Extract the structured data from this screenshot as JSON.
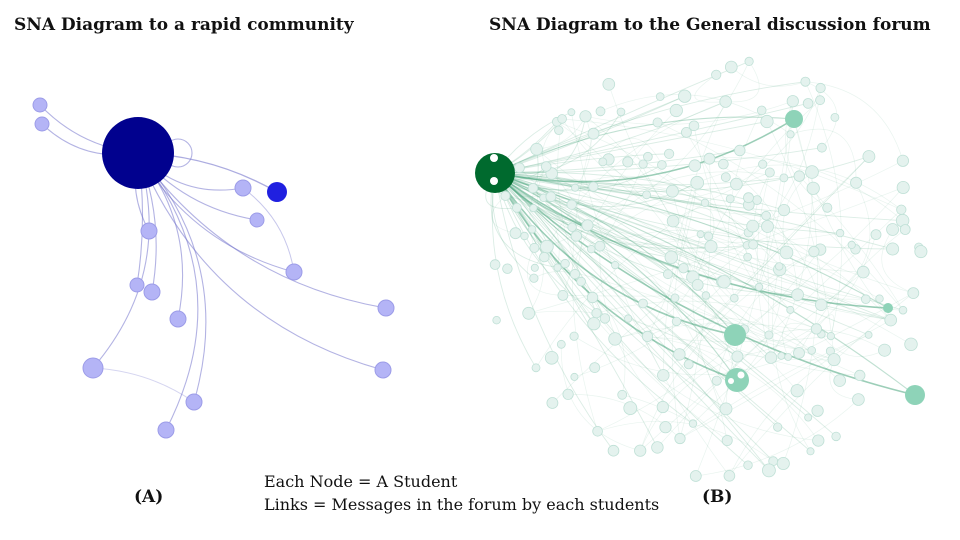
{
  "panel_a": {
    "title": "SNA Diagram to a rapid community",
    "label": "(A)",
    "colors": {
      "hub": "#01018e",
      "accent": "#2020e0",
      "node": "#b4b4f6",
      "node_stroke": "#9c9ce8",
      "edge": "#7474cc"
    }
  },
  "panel_b": {
    "title": "SNA Diagram to the General discussion forum",
    "label": "(B)",
    "colors": {
      "hub": "#006a2e",
      "major": "#8ed3b8",
      "minor": "#e4f2ee",
      "minor_stroke": "#bfe0d6",
      "edge": "#4aa57d"
    }
  },
  "legend": {
    "line1": "Each Node = A Student",
    "line2": "Links = Messages in the forum by each students"
  }
}
